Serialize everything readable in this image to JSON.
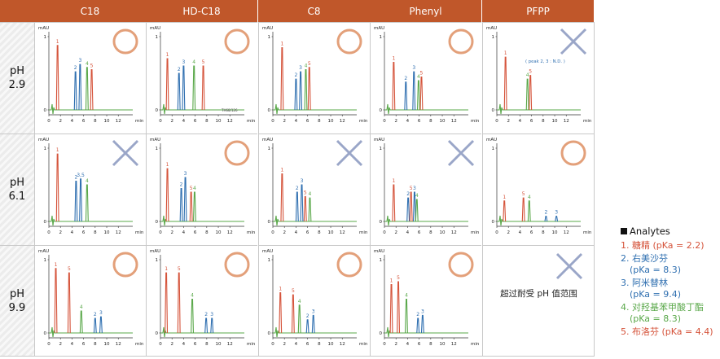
{
  "columns": [
    "C18",
    "HD-C18",
    "C8",
    "Phenyl",
    "PFPP"
  ],
  "rows": [
    "pH\n2.9",
    "pH\n6.1",
    "pH\n9.9"
  ],
  "y_label": "mAU",
  "x_unit": "min",
  "x_ticks": [
    0,
    2,
    4,
    6,
    8,
    10,
    12
  ],
  "y_ticks": [
    0,
    1
  ],
  "colors": {
    "1": "#d5533a",
    "2": "#2f6fb0",
    "3": "#2f6fb0",
    "4": "#5aa84a",
    "5": "#d5533a",
    "ok_symbol": "#e3a07a",
    "ng_symbol": "#9aa6c8",
    "header": "#c0572a"
  },
  "legend": {
    "title": "Analytes",
    "items": [
      {
        "num": "1",
        "label": "1. 糖精 (pKa = 2.2)",
        "sub": ""
      },
      {
        "num": "2",
        "label": "2. 右美沙芬",
        "sub": "(pKa = 8.3)"
      },
      {
        "num": "3",
        "label": "3. 阿米替林",
        "sub": "(pKa = 9.4)"
      },
      {
        "num": "4",
        "label": "4. 对羟基苯甲酸丁酯",
        "sub": "(pKa = 8.3)"
      },
      {
        "num": "5",
        "label": "5. 布洛芬 (pKa = 4.4)",
        "sub": ""
      }
    ]
  },
  "chart_data": [
    {
      "type": "line",
      "column": "C18",
      "row": "pH 2.9",
      "result": "ok",
      "xlim": [
        0,
        14.5
      ],
      "peaks": [
        {
          "id": "1",
          "label": "1",
          "x": 1.5,
          "h": 0.88
        },
        {
          "id": "2",
          "label": "2",
          "x": 4.6,
          "h": 0.52
        },
        {
          "id": "3",
          "label": "3",
          "x": 5.4,
          "h": 0.62
        },
        {
          "id": "4",
          "label": "4",
          "x": 6.6,
          "h": 0.58
        },
        {
          "id": "5",
          "label": "5",
          "x": 7.4,
          "h": 0.55
        }
      ]
    },
    {
      "type": "line",
      "column": "HD-C18",
      "row": "pH 2.9",
      "result": "ok",
      "xlim": [
        0,
        14.5
      ],
      "extra_label": "TH68/126",
      "peaks": [
        {
          "id": "1",
          "label": "1",
          "x": 1.2,
          "h": 0.7
        },
        {
          "id": "2",
          "label": "2",
          "x": 3.2,
          "h": 0.5
        },
        {
          "id": "3",
          "label": "3",
          "x": 4.0,
          "h": 0.6
        },
        {
          "id": "4",
          "label": "4",
          "x": 5.8,
          "h": 0.6
        },
        {
          "id": "5",
          "label": "5",
          "x": 7.4,
          "h": 0.6
        }
      ]
    },
    {
      "type": "line",
      "column": "C8",
      "row": "pH 2.9",
      "result": "ok",
      "xlim": [
        0,
        14.5
      ],
      "peaks": [
        {
          "id": "1",
          "label": "1",
          "x": 1.6,
          "h": 0.85
        },
        {
          "id": "2",
          "label": "2",
          "x": 4.0,
          "h": 0.42
        },
        {
          "id": "3",
          "label": "3",
          "x": 4.8,
          "h": 0.52
        },
        {
          "id": "4",
          "label": "4",
          "x": 5.7,
          "h": 0.55
        },
        {
          "id": "5",
          "label": "5",
          "x": 6.3,
          "h": 0.58
        }
      ]
    },
    {
      "type": "line",
      "column": "Phenyl",
      "row": "pH 2.9",
      "result": "ok",
      "xlim": [
        0,
        14.5
      ],
      "peaks": [
        {
          "id": "1",
          "label": "1",
          "x": 1.6,
          "h": 0.65
        },
        {
          "id": "2",
          "label": "2",
          "x": 3.7,
          "h": 0.38
        },
        {
          "id": "3",
          "label": "3",
          "x": 5.1,
          "h": 0.52
        },
        {
          "id": "4",
          "label": "4",
          "x": 5.9,
          "h": 0.4
        },
        {
          "id": "5",
          "label": "5",
          "x": 6.4,
          "h": 0.45
        }
      ]
    },
    {
      "type": "line",
      "column": "PFPP",
      "row": "pH 2.9",
      "result": "ng",
      "xlim": [
        0,
        14.5
      ],
      "note": "( peak 2, 3 : N.D. )",
      "peaks": [
        {
          "id": "1",
          "label": "1",
          "x": 1.5,
          "h": 0.72
        },
        {
          "id": "4",
          "label": "4",
          "x": 5.3,
          "h": 0.42
        },
        {
          "id": "5",
          "label": "5",
          "x": 5.8,
          "h": 0.47
        }
      ]
    },
    {
      "type": "line",
      "column": "C18",
      "row": "pH 6.1",
      "result": "ng",
      "xlim": [
        0,
        14.5
      ],
      "peaks": [
        {
          "id": "1",
          "label": "1",
          "x": 1.5,
          "h": 0.92
        },
        {
          "id": "2",
          "label": "2",
          "x": 4.7,
          "h": 0.55
        },
        {
          "id": "3",
          "label": "3,5",
          "x": 5.5,
          "h": 0.58
        },
        {
          "id": "4",
          "label": "4",
          "x": 6.6,
          "h": 0.5
        }
      ]
    },
    {
      "type": "line",
      "column": "HD-C18",
      "row": "pH 6.1",
      "result": "ok",
      "xlim": [
        0,
        14.5
      ],
      "peaks": [
        {
          "id": "1",
          "label": "1",
          "x": 1.2,
          "h": 0.72
        },
        {
          "id": "2",
          "label": "2",
          "x": 3.6,
          "h": 0.45
        },
        {
          "id": "3",
          "label": "3",
          "x": 4.3,
          "h": 0.6
        },
        {
          "id": "5",
          "label": "5",
          "x": 5.3,
          "h": 0.4
        },
        {
          "id": "4",
          "label": "4",
          "x": 5.9,
          "h": 0.4
        }
      ]
    },
    {
      "type": "line",
      "column": "C8",
      "row": "pH 6.1",
      "result": "ng",
      "xlim": [
        0,
        14.5
      ],
      "peaks": [
        {
          "id": "1",
          "label": "1",
          "x": 1.6,
          "h": 0.65
        },
        {
          "id": "2",
          "label": "2",
          "x": 4.2,
          "h": 0.4
        },
        {
          "id": "3",
          "label": "3",
          "x": 5.0,
          "h": 0.5
        },
        {
          "id": "5",
          "label": "5",
          "x": 5.6,
          "h": 0.34
        },
        {
          "id": "4",
          "label": "4",
          "x": 6.4,
          "h": 0.32
        }
      ]
    },
    {
      "type": "line",
      "column": "Phenyl",
      "row": "pH 6.1",
      "result": "ng",
      "xlim": [
        0,
        14.5
      ],
      "peaks": [
        {
          "id": "1",
          "label": "1",
          "x": 1.6,
          "h": 0.5
        },
        {
          "id": "2",
          "label": "2",
          "x": 4.1,
          "h": 0.32
        },
        {
          "id": "5",
          "label": "5",
          "x": 4.6,
          "h": 0.4
        },
        {
          "id": "3",
          "label": "3",
          "x": 5.2,
          "h": 0.4
        },
        {
          "id": "4",
          "label": "4",
          "x": 5.6,
          "h": 0.3
        }
      ]
    },
    {
      "type": "line",
      "column": "PFPP",
      "row": "pH 6.1",
      "result": "ok",
      "xlim": [
        0,
        14.5
      ],
      "peaks": [
        {
          "id": "1",
          "label": "1",
          "x": 1.3,
          "h": 0.28
        },
        {
          "id": "5",
          "label": "5",
          "x": 4.6,
          "h": 0.32
        },
        {
          "id": "4",
          "label": "4",
          "x": 5.6,
          "h": 0.28
        },
        {
          "id": "2",
          "label": "2",
          "x": 8.5,
          "h": 0.07
        },
        {
          "id": "3",
          "label": "3",
          "x": 10.3,
          "h": 0.07
        }
      ]
    },
    {
      "type": "line",
      "column": "C18",
      "row": "pH 9.9",
      "result": "ok",
      "xlim": [
        0,
        14.5
      ],
      "peaks": [
        {
          "id": "1",
          "label": "1",
          "x": 1.2,
          "h": 0.88
        },
        {
          "id": "5",
          "label": "5",
          "x": 3.5,
          "h": 0.82
        },
        {
          "id": "4",
          "label": "4",
          "x": 5.6,
          "h": 0.3
        },
        {
          "id": "2",
          "label": "2",
          "x": 8.0,
          "h": 0.2
        },
        {
          "id": "3",
          "label": "3",
          "x": 9.0,
          "h": 0.22
        }
      ]
    },
    {
      "type": "line",
      "column": "HD-C18",
      "row": "pH 9.9",
      "result": "ok",
      "xlim": [
        0,
        14.5
      ],
      "peaks": [
        {
          "id": "1",
          "label": "1",
          "x": 1.0,
          "h": 0.82
        },
        {
          "id": "5",
          "label": "5",
          "x": 3.2,
          "h": 0.82
        },
        {
          "id": "4",
          "label": "4",
          "x": 5.5,
          "h": 0.46
        },
        {
          "id": "2",
          "label": "2",
          "x": 7.9,
          "h": 0.2
        },
        {
          "id": "3",
          "label": "3",
          "x": 8.9,
          "h": 0.2
        }
      ]
    },
    {
      "type": "line",
      "column": "C8",
      "row": "pH 9.9",
      "result": "ok",
      "xlim": [
        0,
        14.5
      ],
      "peaks": [
        {
          "id": "1",
          "label": "1",
          "x": 1.3,
          "h": 0.55
        },
        {
          "id": "5",
          "label": "5",
          "x": 3.5,
          "h": 0.52
        },
        {
          "id": "4",
          "label": "4",
          "x": 4.6,
          "h": 0.38
        },
        {
          "id": "2",
          "label": "2",
          "x": 6.0,
          "h": 0.18
        },
        {
          "id": "3",
          "label": "3",
          "x": 7.0,
          "h": 0.24
        }
      ]
    },
    {
      "type": "line",
      "column": "Phenyl",
      "row": "pH 9.9",
      "result": "ok",
      "xlim": [
        0,
        14.5
      ],
      "peaks": [
        {
          "id": "1",
          "label": "1",
          "x": 1.2,
          "h": 0.66
        },
        {
          "id": "5",
          "label": "5",
          "x": 2.4,
          "h": 0.7
        },
        {
          "id": "4",
          "label": "4",
          "x": 3.8,
          "h": 0.46
        },
        {
          "id": "2",
          "label": "2",
          "x": 5.8,
          "h": 0.2
        },
        {
          "id": "3",
          "label": "3",
          "x": 6.6,
          "h": 0.24
        }
      ]
    },
    {
      "type": "table",
      "column": "PFPP",
      "row": "pH 9.9",
      "result": "ng",
      "note": "超过耐受 pH 值范围",
      "peaks": []
    }
  ]
}
